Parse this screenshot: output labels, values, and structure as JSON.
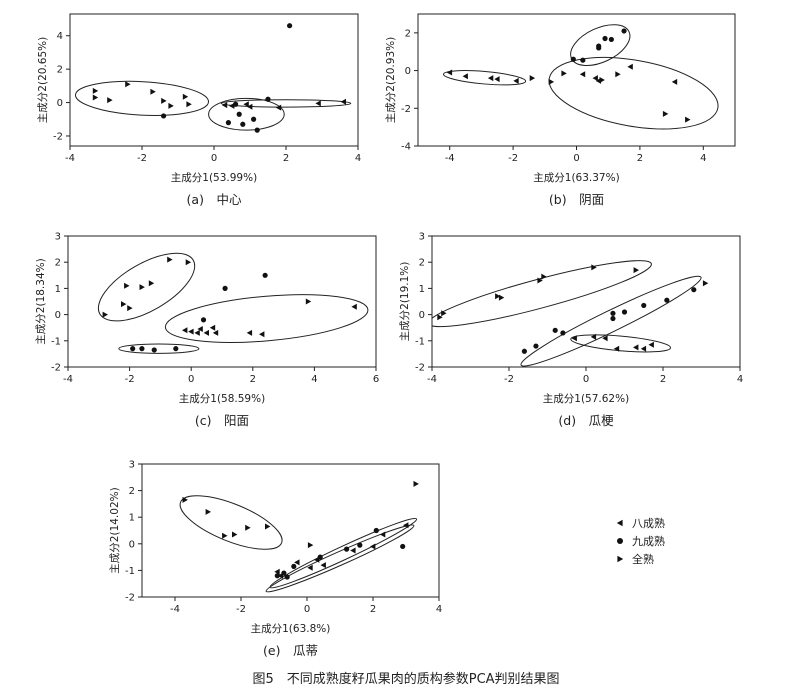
{
  "figure_caption": "图5　不同成熟度籽瓜果肉的质构参数PCA判别结果图",
  "legend": {
    "items": [
      {
        "label": "八成熟",
        "marker": "triangle-left"
      },
      {
        "label": "九成熟",
        "marker": "circle"
      },
      {
        "label": "全熟",
        "marker": "triangle-right"
      }
    ]
  },
  "chart_data": [
    {
      "type": "scatter",
      "caption": "(a)　中心",
      "xlabel": "主成分1(53.99%)",
      "ylabel": "主成分2(20.65%)",
      "xlim": [
        -4,
        4
      ],
      "ylim": [
        -2.6,
        5.3
      ],
      "xticks": [
        -4,
        -2,
        0,
        2,
        4
      ],
      "yticks": [
        -2,
        0,
        2,
        4
      ],
      "series": [
        {
          "name": "八成熟",
          "marker": "triangle-left",
          "points": [
            [
              0.3,
              -0.15
            ],
            [
              0.5,
              -0.2
            ],
            [
              1.0,
              -0.25
            ],
            [
              1.8,
              -0.3
            ],
            [
              2.9,
              -0.05
            ],
            [
              3.6,
              0.05
            ],
            [
              0.9,
              -0.1
            ]
          ]
        },
        {
          "name": "九成熟",
          "marker": "circle",
          "points": [
            [
              2.1,
              4.6
            ],
            [
              -1.4,
              -0.8
            ],
            [
              0.6,
              -0.1
            ],
            [
              0.7,
              -0.7
            ],
            [
              0.8,
              -1.3
            ],
            [
              1.1,
              -1.0
            ],
            [
              1.2,
              -1.65
            ],
            [
              0.4,
              -1.2
            ],
            [
              1.5,
              0.2
            ]
          ]
        },
        {
          "name": "全熟",
          "marker": "triangle-right",
          "points": [
            [
              -3.3,
              0.3
            ],
            [
              -3.3,
              0.7
            ],
            [
              -2.9,
              0.15
            ],
            [
              -2.4,
              1.1
            ],
            [
              -1.7,
              0.65
            ],
            [
              -1.4,
              0.1
            ],
            [
              -1.2,
              -0.2
            ],
            [
              -0.8,
              0.35
            ],
            [
              -0.7,
              -0.1
            ]
          ]
        }
      ],
      "ellipses": [
        {
          "cx": -2.0,
          "cy": 0.25,
          "rx": 1.85,
          "ry": 1.0,
          "angle": -3
        },
        {
          "cx": 0.9,
          "cy": -0.7,
          "rx": 1.05,
          "ry": 0.95,
          "angle": 0
        },
        {
          "cx": 2.0,
          "cy": -0.05,
          "rx": 1.8,
          "ry": 0.22,
          "angle": 0
        }
      ]
    },
    {
      "type": "scatter",
      "caption": "(b)　阴面",
      "xlabel": "主成分1(63.37%)",
      "ylabel": "主成分2(20.93%)",
      "xlim": [
        -5,
        5
      ],
      "ylim": [
        -4,
        3
      ],
      "xticks": [
        -4,
        -2,
        0,
        2,
        4
      ],
      "yticks": [
        -4,
        -2,
        0,
        2
      ],
      "series": [
        {
          "name": "八成熟",
          "marker": "triangle-left",
          "points": [
            [
              -4.0,
              -0.1
            ],
            [
              -3.5,
              -0.3
            ],
            [
              -2.7,
              -0.4
            ],
            [
              -2.5,
              -0.45
            ],
            [
              -1.9,
              -0.55
            ],
            [
              0.2,
              -0.2
            ],
            [
              0.6,
              -0.4
            ],
            [
              0.7,
              -0.55
            ],
            [
              1.7,
              0.2
            ],
            [
              3.1,
              -0.6
            ]
          ]
        },
        {
          "name": "九成熟",
          "marker": "circle",
          "points": [
            [
              -0.1,
              0.6
            ],
            [
              0.2,
              0.55
            ],
            [
              0.7,
              1.2
            ],
            [
              0.9,
              1.7
            ],
            [
              1.1,
              1.65
            ],
            [
              1.5,
              2.1
            ],
            [
              0.7,
              1.3
            ]
          ]
        },
        {
          "name": "全熟",
          "marker": "triangle-right",
          "points": [
            [
              -1.4,
              -0.4
            ],
            [
              -0.8,
              -0.6
            ],
            [
              -0.4,
              -0.15
            ],
            [
              1.3,
              -0.2
            ],
            [
              2.8,
              -2.3
            ],
            [
              3.5,
              -2.6
            ],
            [
              0.8,
              -0.5
            ]
          ]
        }
      ],
      "ellipses": [
        {
          "cx": -2.9,
          "cy": -0.38,
          "rx": 1.3,
          "ry": 0.33,
          "angle": -5
        },
        {
          "cx": 0.75,
          "cy": 1.35,
          "rx": 1.0,
          "ry": 0.9,
          "angle": 25
        },
        {
          "cx": 1.8,
          "cy": -1.2,
          "rx": 2.7,
          "ry": 1.75,
          "angle": -10
        }
      ]
    },
    {
      "type": "scatter",
      "caption": "(c)　阳面",
      "xlabel": "主成分1(58.59%)",
      "ylabel": "主成分2(18.34%)",
      "xlim": [
        -4,
        6
      ],
      "ylim": [
        -2,
        3
      ],
      "xticks": [
        -4,
        -2,
        0,
        2,
        4,
        6
      ],
      "yticks": [
        -2,
        -1,
        0,
        1,
        2,
        3
      ],
      "series": [
        {
          "name": "八成熟",
          "marker": "triangle-left",
          "points": [
            [
              -0.2,
              -0.6
            ],
            [
              0.0,
              -0.65
            ],
            [
              0.2,
              -0.7
            ],
            [
              0.5,
              -0.7
            ],
            [
              0.7,
              -0.5
            ],
            [
              0.8,
              -0.7
            ],
            [
              1.9,
              -0.7
            ],
            [
              2.3,
              -0.75
            ],
            [
              5.3,
              0.3
            ],
            [
              0.3,
              -0.55
            ]
          ]
        },
        {
          "name": "九成熟",
          "marker": "circle",
          "points": [
            [
              2.4,
              1.5
            ],
            [
              1.1,
              1.0
            ],
            [
              0.4,
              -0.2
            ],
            [
              -1.6,
              -1.3
            ],
            [
              -1.2,
              -1.35
            ],
            [
              -0.5,
              -1.3
            ],
            [
              -1.9,
              -1.3
            ]
          ]
        },
        {
          "name": "全熟",
          "marker": "triangle-right",
          "points": [
            [
              -2.8,
              0.0
            ],
            [
              -2.2,
              0.4
            ],
            [
              -2.0,
              0.25
            ],
            [
              -2.1,
              1.1
            ],
            [
              -1.6,
              1.05
            ],
            [
              -1.3,
              1.2
            ],
            [
              -0.7,
              2.1
            ],
            [
              -0.1,
              2.0
            ],
            [
              3.8,
              0.5
            ]
          ]
        }
      ],
      "ellipses": [
        {
          "cx": -1.45,
          "cy": 1.05,
          "rx": 1.75,
          "ry": 0.9,
          "angle": 30
        },
        {
          "cx": -1.05,
          "cy": -1.3,
          "rx": 1.3,
          "ry": 0.18,
          "angle": 0
        },
        {
          "cx": 2.45,
          "cy": -0.15,
          "rx": 3.3,
          "ry": 0.85,
          "angle": 5
        }
      ]
    },
    {
      "type": "scatter",
      "caption": "(d)　瓜梗",
      "xlabel": "主成分1(57.62%)",
      "ylabel": "主成分2(19.1%)",
      "xlim": [
        -4,
        4
      ],
      "ylim": [
        -2,
        3
      ],
      "xticks": [
        -4,
        -2,
        0,
        2,
        4
      ],
      "yticks": [
        -2,
        -1,
        0,
        1,
        2,
        3
      ],
      "series": [
        {
          "name": "八成熟",
          "marker": "triangle-left",
          "points": [
            [
              -0.3,
              -0.9
            ],
            [
              0.2,
              -0.85
            ],
            [
              0.8,
              -1.3
            ],
            [
              1.3,
              -1.25
            ],
            [
              1.5,
              -1.3
            ],
            [
              1.7,
              -1.15
            ],
            [
              0.5,
              -0.9
            ]
          ]
        },
        {
          "name": "九成熟",
          "marker": "circle",
          "points": [
            [
              -1.6,
              -1.4
            ],
            [
              -1.3,
              -1.2
            ],
            [
              -0.8,
              -0.6
            ],
            [
              -0.6,
              -0.7
            ],
            [
              0.7,
              0.05
            ],
            [
              1.0,
              0.1
            ],
            [
              1.5,
              0.35
            ],
            [
              2.1,
              0.55
            ],
            [
              2.8,
              0.95
            ],
            [
              0.7,
              -0.15
            ]
          ]
        },
        {
          "name": "全熟",
          "marker": "triangle-right",
          "points": [
            [
              -3.8,
              -0.1
            ],
            [
              -3.7,
              0.05
            ],
            [
              -2.3,
              0.7
            ],
            [
              -2.2,
              0.65
            ],
            [
              -1.2,
              1.3
            ],
            [
              -1.1,
              1.45
            ],
            [
              0.2,
              1.8
            ],
            [
              1.3,
              1.7
            ],
            [
              3.1,
              1.2
            ]
          ]
        }
      ],
      "ellipses": [
        {
          "cx": -1.2,
          "cy": 0.8,
          "rx": 3.0,
          "ry": 0.55,
          "angle": 15
        },
        {
          "cx": 0.65,
          "cy": -0.25,
          "rx": 2.6,
          "ry": 0.4,
          "angle": 26
        },
        {
          "cx": 0.9,
          "cy": -1.1,
          "rx": 1.3,
          "ry": 0.28,
          "angle": -5
        }
      ]
    },
    {
      "type": "scatter",
      "caption": "(e)　瓜蒂",
      "xlabel": "主成分1(63.8%)",
      "ylabel": "主成分2(14.02%)",
      "xlim": [
        -5,
        4
      ],
      "ylim": [
        -2,
        3
      ],
      "xticks": [
        -4,
        -2,
        0,
        2,
        4
      ],
      "yticks": [
        -2,
        -1,
        0,
        1,
        2,
        3
      ],
      "series": [
        {
          "name": "八成熟",
          "marker": "triangle-left",
          "points": [
            [
              -0.9,
              -1.05
            ],
            [
              -0.8,
              -1.2
            ],
            [
              -0.3,
              -0.7
            ],
            [
              0.1,
              -0.9
            ],
            [
              0.5,
              -0.8
            ],
            [
              1.4,
              -0.25
            ],
            [
              2.0,
              -0.1
            ],
            [
              2.3,
              0.35
            ],
            [
              3.0,
              0.7
            ],
            [
              0.3,
              -0.6
            ]
          ]
        },
        {
          "name": "九成熟",
          "marker": "circle",
          "points": [
            [
              -0.9,
              -1.2
            ],
            [
              -0.7,
              -1.1
            ],
            [
              -0.4,
              -0.85
            ],
            [
              0.4,
              -0.5
            ],
            [
              1.2,
              -0.2
            ],
            [
              1.6,
              -0.05
            ],
            [
              2.1,
              0.5
            ],
            [
              2.9,
              -0.1
            ],
            [
              -0.6,
              -1.25
            ]
          ]
        },
        {
          "name": "全熟",
          "marker": "triangle-right",
          "points": [
            [
              -3.7,
              1.65
            ],
            [
              -3.0,
              1.2
            ],
            [
              -2.5,
              0.3
            ],
            [
              -2.2,
              0.35
            ],
            [
              -1.8,
              0.6
            ],
            [
              -1.2,
              0.65
            ],
            [
              0.1,
              -0.05
            ],
            [
              3.3,
              2.25
            ]
          ]
        }
      ],
      "ellipses": [
        {
          "cx": -2.3,
          "cy": 0.8,
          "rx": 1.65,
          "ry": 0.7,
          "angle": -22
        },
        {
          "cx": 1.1,
          "cy": -0.35,
          "rx": 2.45,
          "ry": 0.25,
          "angle": 25
        },
        {
          "cx": 1.0,
          "cy": -0.55,
          "rx": 2.45,
          "ry": 0.25,
          "angle": 24
        }
      ]
    }
  ]
}
